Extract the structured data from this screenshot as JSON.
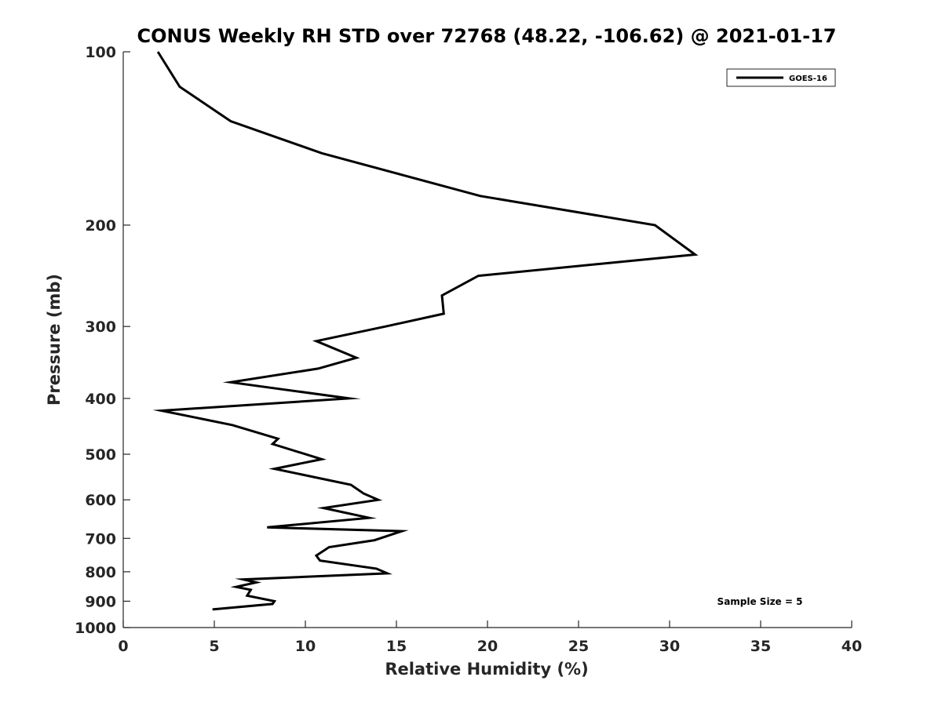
{
  "chart_data": {
    "type": "line",
    "title": "CONUS Weekly RH STD over 72768 (48.22, -106.62) @ 2021-01-17",
    "xlabel": "Relative Humidity (%)",
    "ylabel": "Pressure (mb)",
    "xlim": [
      0,
      40
    ],
    "ylim": [
      100,
      1000
    ],
    "yscale": "log",
    "yreversed": true,
    "grid": false,
    "legend_position": "top-right",
    "x_ticks": [
      0,
      5,
      10,
      15,
      20,
      25,
      30,
      35,
      40
    ],
    "x_tick_labels": [
      "0",
      "5",
      "10",
      "15",
      "20",
      "25",
      "30",
      "35",
      "40"
    ],
    "y_ticks": [
      100,
      200,
      300,
      400,
      500,
      600,
      700,
      800,
      900,
      1000
    ],
    "y_tick_labels": [
      "100",
      "200",
      "300",
      "400",
      "500",
      "600",
      "700",
      "800",
      "900",
      "1000"
    ],
    "annotation": "Sample Size = 5",
    "series": [
      {
        "name": "GOES-16",
        "color": "#000000",
        "rh": [
          1.9,
          3.1,
          5.9,
          10.9,
          19.6,
          29.2,
          31.4,
          19.5,
          17.5,
          17.6,
          14.4,
          10.6,
          12.8,
          10.7,
          5.9,
          12.4,
          2.1,
          6.0,
          8.5,
          8.2,
          10.9,
          8.3,
          12.5,
          13.2,
          14.0,
          11.0,
          13.5,
          7.9,
          15.3,
          13.8,
          11.3,
          10.6,
          10.8,
          13.9,
          14.5,
          6.6,
          7.3,
          6.2,
          7.0,
          6.8,
          8.3,
          8.2,
          4.9
        ],
        "pressure": [
          100,
          115,
          132,
          150,
          178,
          200,
          225,
          245,
          265,
          285,
          300,
          318,
          340,
          355,
          375,
          400,
          420,
          445,
          470,
          480,
          510,
          530,
          565,
          585,
          600,
          620,
          645,
          670,
          680,
          705,
          725,
          750,
          765,
          790,
          805,
          825,
          835,
          850,
          860,
          880,
          900,
          910,
          930
        ]
      }
    ]
  }
}
